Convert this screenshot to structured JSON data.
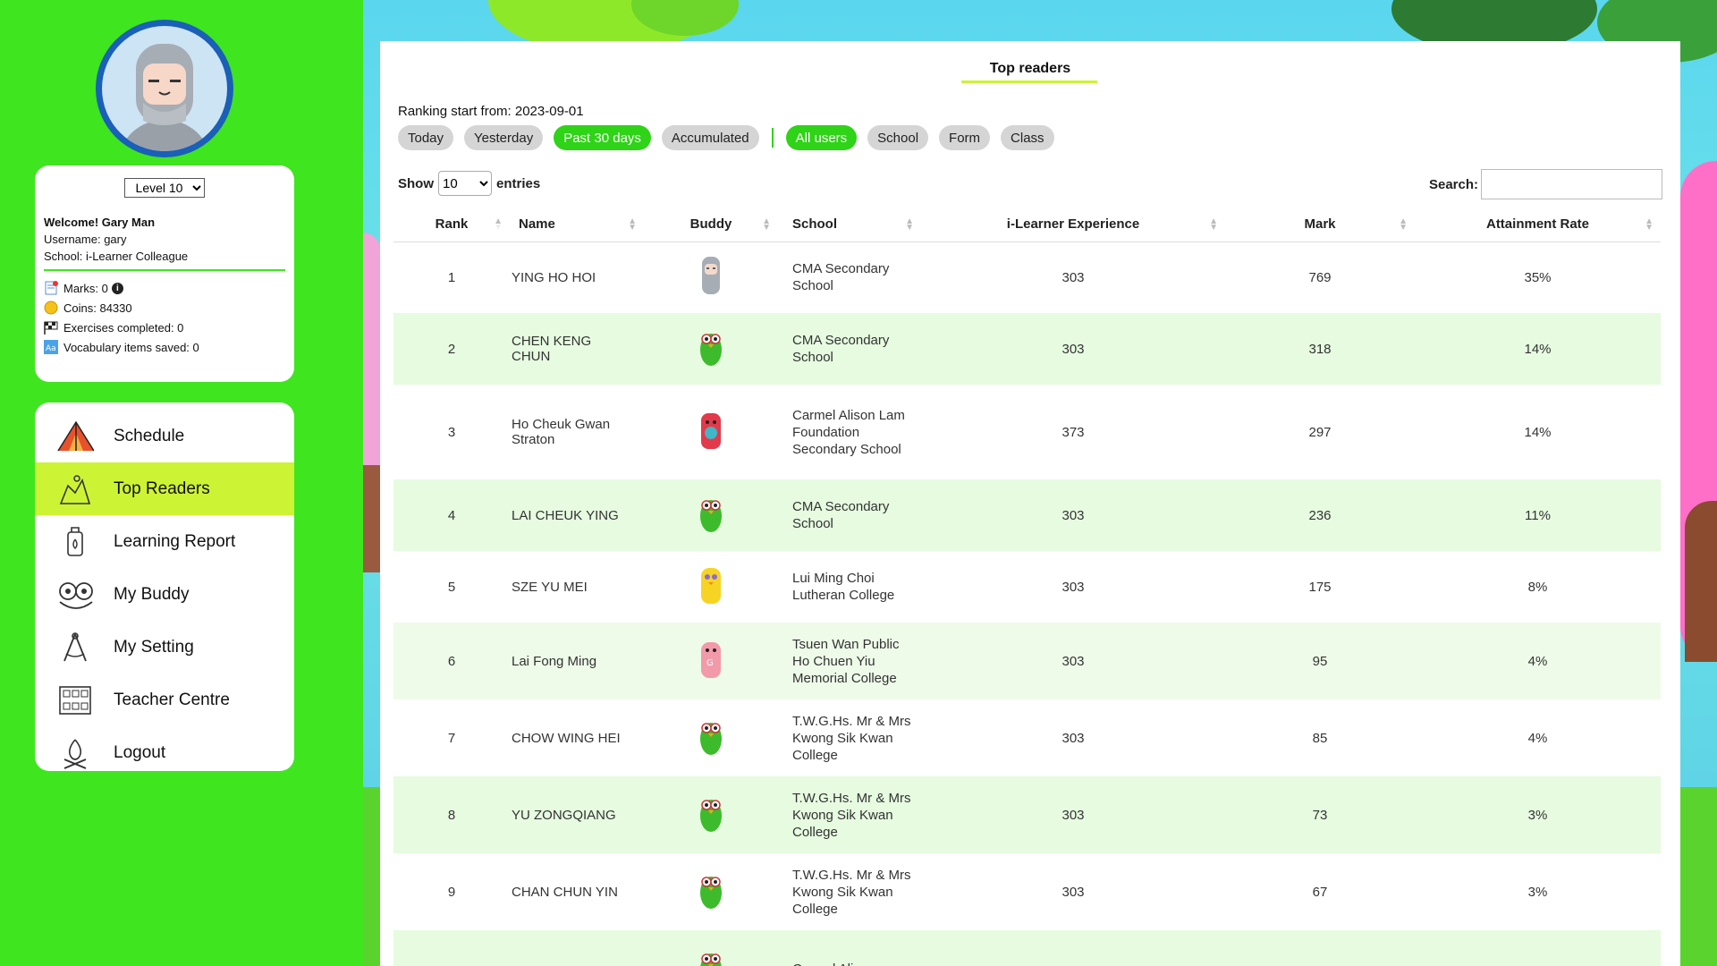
{
  "user": {
    "level_options": [
      "Level 10"
    ],
    "level_selected": "Level 10",
    "welcome": "Welcome! Gary Man",
    "username": "Username: gary",
    "school": "School: i-Learner Colleague",
    "marks": "Marks: 0",
    "coins": "Coins: 84330",
    "exercises": "Exercises completed: 0",
    "vocab": "Vocabulary items saved: 0"
  },
  "nav": {
    "items": [
      {
        "label": "Schedule",
        "icon": "tent-icon"
      },
      {
        "label": "Top Readers",
        "icon": "podium-icon",
        "active": true
      },
      {
        "label": "Learning Report",
        "icon": "lantern-icon"
      },
      {
        "label": "My Buddy",
        "icon": "owl-icon"
      },
      {
        "label": "My Setting",
        "icon": "compass-icon"
      },
      {
        "label": "Teacher Centre",
        "icon": "grid-icon"
      },
      {
        "label": "Logout",
        "icon": "campfire-icon"
      }
    ]
  },
  "panel": {
    "title": "Top readers",
    "ranking_start": "Ranking start from: 2023-09-01",
    "time_filters": [
      "Today",
      "Yesterday",
      "Past 30 days",
      "Accumulated"
    ],
    "time_selected": "Past 30 days",
    "scope_filters": [
      "All users",
      "School",
      "Form",
      "Class"
    ],
    "scope_selected": "All users",
    "show_label": "Show",
    "entries_value": "10",
    "entries_label": "entries",
    "search_label": "Search:",
    "search_value": ""
  },
  "table": {
    "headers": [
      "Rank",
      "Name",
      "Buddy",
      "School",
      "i-Learner Experience",
      "Mark",
      "Attainment Rate"
    ],
    "rows": [
      {
        "rank": "1",
        "name": "YING HO HOI",
        "buddy": "grey-bunny",
        "school": "CMA Secondary School",
        "exp": "303",
        "mark": "769",
        "rate": "35%"
      },
      {
        "rank": "2",
        "name": "CHEN KENG CHUN",
        "buddy": "green-owl",
        "school": "CMA Secondary School",
        "exp": "303",
        "mark": "318",
        "rate": "14%"
      },
      {
        "rank": "3",
        "name": "Ho Cheuk Gwan Straton",
        "buddy": "red-bear",
        "school": "Carmel Alison Lam Foundation Secondary School",
        "exp": "373",
        "mark": "297",
        "rate": "14%"
      },
      {
        "rank": "4",
        "name": "LAI CHEUK YING",
        "buddy": "green-owl",
        "school": "CMA Secondary School",
        "exp": "303",
        "mark": "236",
        "rate": "11%"
      },
      {
        "rank": "5",
        "name": "SZE YU MEI",
        "buddy": "yellow-chick",
        "school": "Lui Ming Choi Lutheran College",
        "exp": "303",
        "mark": "175",
        "rate": "8%"
      },
      {
        "rank": "6",
        "name": "Lai Fong Ming",
        "buddy": "pink-pig",
        "school": "Tsuen Wan Public Ho Chuen Yiu Memorial College",
        "exp": "303",
        "mark": "95",
        "rate": "4%"
      },
      {
        "rank": "7",
        "name": "CHOW WING HEI",
        "buddy": "green-owl",
        "school": "T.W.G.Hs. Mr & Mrs Kwong Sik Kwan College",
        "exp": "303",
        "mark": "85",
        "rate": "4%"
      },
      {
        "rank": "8",
        "name": "YU ZONGQIANG",
        "buddy": "green-owl",
        "school": "T.W.G.Hs. Mr & Mrs Kwong Sik Kwan College",
        "exp": "303",
        "mark": "73",
        "rate": "3%"
      },
      {
        "rank": "9",
        "name": "CHAN CHUN YIN",
        "buddy": "green-owl",
        "school": "T.W.G.Hs. Mr & Mrs Kwong Sik Kwan College",
        "exp": "303",
        "mark": "67",
        "rate": "3%"
      },
      {
        "rank": "",
        "name": "",
        "buddy": "green-owl",
        "school": "Carmel Alison",
        "exp": "",
        "mark": "",
        "rate": ""
      }
    ]
  },
  "colors": {
    "sidebar": "#3fe51f",
    "active_nav": "#cdf335",
    "pill_on": "#2fd317",
    "row_alt": "#e6fbe0"
  }
}
